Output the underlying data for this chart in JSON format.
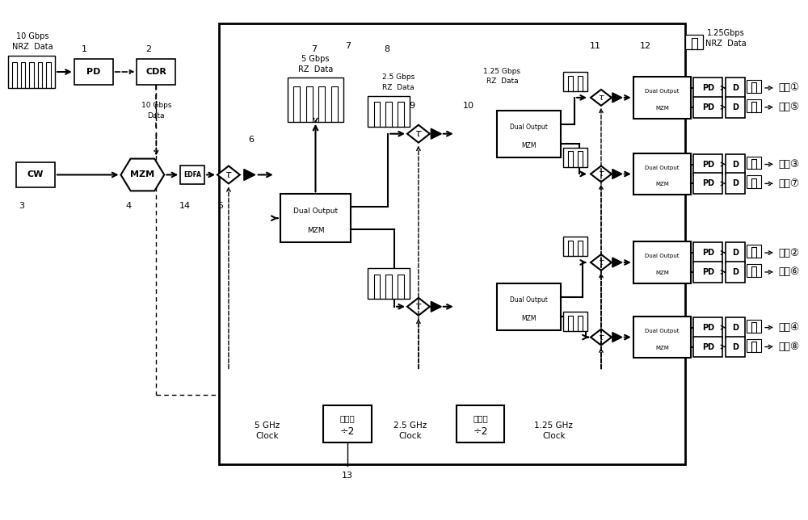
{
  "bg_color": "#ffffff",
  "line_color": "#000000",
  "fig_width": 10.0,
  "fig_height": 6.44,
  "channels": [
    "信道①",
    "信道⑤",
    "信道③",
    "信道⑦",
    "信道②",
    "信道⑥",
    "信道④",
    "信道⑧"
  ]
}
